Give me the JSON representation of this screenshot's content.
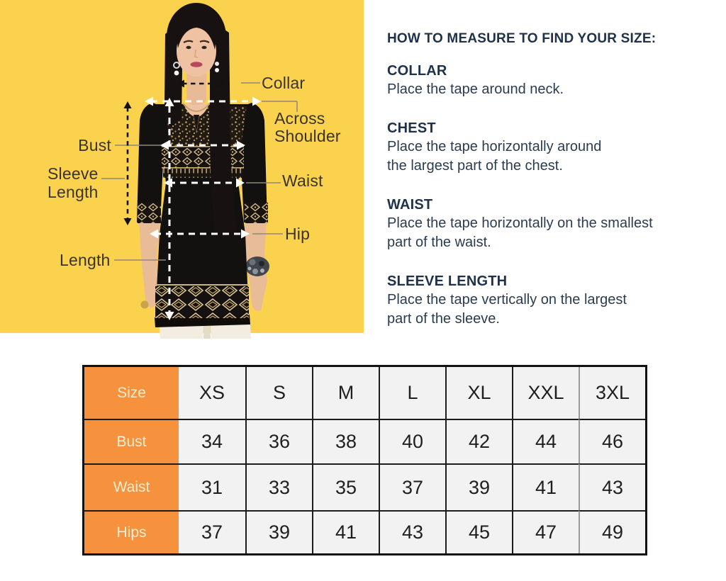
{
  "measurement_diagram": {
    "labels": {
      "collar": "Collar",
      "across_shoulder": "Across Shoulder",
      "bust": "Bust",
      "sleeve_length": "Sleeve Length",
      "waist": "Waist",
      "hip": "Hip",
      "length": "Length"
    }
  },
  "instructions": {
    "title": "HOW TO MEASURE TO FIND YOUR SIZE:",
    "sections": [
      {
        "heading": "COLLAR",
        "lines": [
          "Place the tape around neck."
        ]
      },
      {
        "heading": "CHEST",
        "lines": [
          "Place the tape horizontally around",
          "the largest part of the chest."
        ]
      },
      {
        "heading": "WAIST",
        "lines": [
          "Place the tape horizontally on the smallest",
          "part of the waist."
        ]
      },
      {
        "heading": "SLEEVE LENGTH",
        "lines": [
          "Place the tape vertically on the largest",
          "part of the sleeve."
        ]
      }
    ]
  },
  "size_table": {
    "header_label": "Size",
    "sizes": [
      "XS",
      "S",
      "M",
      "L",
      "XL",
      "XXL",
      "3XL"
    ],
    "rows": [
      {
        "label": "Bust",
        "values": [
          "34",
          "36",
          "38",
          "40",
          "42",
          "44",
          "46"
        ]
      },
      {
        "label": "Waist",
        "values": [
          "31",
          "33",
          "35",
          "37",
          "39",
          "41",
          "43"
        ]
      },
      {
        "label": "Hips",
        "values": [
          "37",
          "39",
          "41",
          "43",
          "45",
          "47",
          "49"
        ]
      }
    ]
  },
  "colors": {
    "panel_yellow": "#FBD24D",
    "accent_orange": "#F6913E",
    "table_cell_gray": "#F2F2F2",
    "instruction_text_navy": "#24374B",
    "diagram_label_dark": "#3A332B"
  }
}
